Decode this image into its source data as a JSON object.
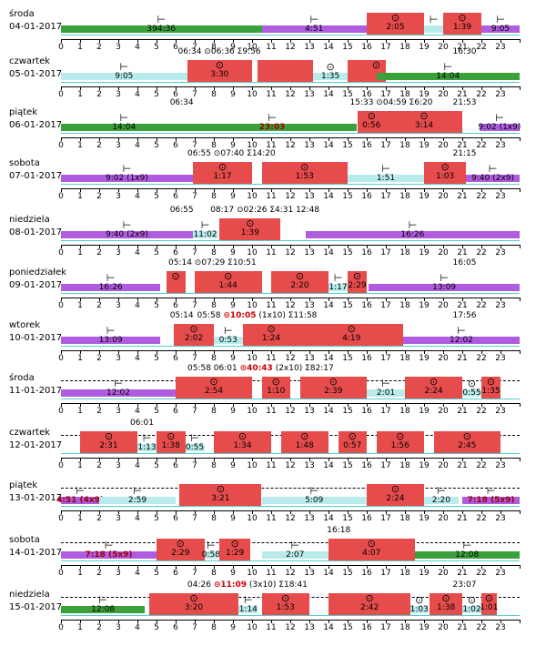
{
  "hours": [
    "0",
    "1",
    "2",
    "3",
    "4",
    "5",
    "6",
    "7",
    "8",
    "9",
    "10",
    "11",
    "12",
    "13",
    "14",
    "15",
    "16",
    "17",
    "18",
    "19",
    "20",
    "21",
    "22",
    "23"
  ],
  "icons": {
    "drive": "steering-wheel-icon",
    "rest": "bed-icon",
    "tools": "tools-icon"
  },
  "colors": {
    "drive": "#e74c4c",
    "rest": "#b8ecec",
    "green": "#3aa03a",
    "purple": "#b05ce0"
  },
  "days": [
    {
      "name": "środa",
      "date": "04-01-2017",
      "header": "",
      "header_bold": "",
      "labels": [
        "394:36",
        "4:51",
        "2:05",
        "1:39",
        "9:05"
      ]
    },
    {
      "name": "czwartek",
      "date": "05-01-2017",
      "header": "06:34 ⊙06:36 Σ9:56",
      "header_bold": "",
      "time_right": "16:30",
      "labels": [
        "9:05",
        "3:30",
        "1:35",
        "14:04"
      ]
    },
    {
      "name": "piątek",
      "date": "06-01-2017",
      "header": "15:33 ⊙04:59 Σ6:20",
      "header_bold": "",
      "time_left": "06:34",
      "time_right": "21:53",
      "labels": [
        "14:04",
        "23:03",
        "0:56",
        "3:14",
        "9:02 (1x9)"
      ]
    },
    {
      "name": "sobota",
      "date": "07-01-2017",
      "header": "06:55 ⊙07:40 Σ14:20",
      "header_bold": "",
      "time_right": "21:15",
      "labels": [
        "9:02 (1x9)",
        "1:17",
        "1:53",
        "1:51",
        "1:03",
        "9:40 (2x9)"
      ]
    },
    {
      "name": "niedziela",
      "date": "08-01-2017",
      "header": "08:17 ⊙02:26 Σ4:31 12:48",
      "header_bold": "",
      "time_left": "06:55",
      "labels": [
        "9:40 (2x9)",
        "11:02",
        "1:39",
        "16:26"
      ]
    },
    {
      "name": "poniedziałek",
      "date": "09-01-2017",
      "header": "05:14 ⊙07:29 Σ10:51",
      "header_bold": "",
      "time_right": "16:05",
      "labels": [
        "16:26",
        "1:44",
        "2:20",
        "1:17",
        "2:29",
        "13:09"
      ]
    },
    {
      "name": "wtorek",
      "date": "10-01-2017",
      "header": "05:58",
      "header_bold": "⊙10:05",
      "header_tail": "(1x10) Σ11:58",
      "time_left": "05:14",
      "time_right": "17:56",
      "labels": [
        "13:09",
        "2:02",
        "0:53",
        "1:24",
        "4:19",
        "12:02"
      ]
    },
    {
      "name": "środa",
      "date": "11-01-2017",
      "header": "05:58 06:01",
      "header_bold": "⊙40:43",
      "header_tail": "(2x10) Σ82:17",
      "labels": [
        "12:02",
        "2:54",
        "1:10",
        "2:39",
        "2:01",
        "2:24",
        "0:55",
        "1:35"
      ]
    },
    {
      "name": "czwartek",
      "date": "12-01-2017",
      "header": "06:01",
      "header_bold": "",
      "labels": [
        "2:31",
        "1:13",
        "1:38",
        "0:55",
        "1:34",
        "1:48",
        "0:57",
        "1:56",
        "2:45"
      ]
    },
    {
      "name": "piątek",
      "date": "13-01-2017",
      "header": "",
      "header_bold": "",
      "labels": [
        "4:51 (4x9)",
        "2:59",
        "3:21",
        "5:09",
        "2:24",
        "2:20",
        "7:18 (5x9)"
      ]
    },
    {
      "name": "sobota",
      "date": "14-01-2017",
      "header": "16:18",
      "header_bold": "",
      "labels": [
        "7:18 (5x9)",
        "2:29",
        "0:58",
        "1:29",
        "2:07",
        "4:07",
        "12:08"
      ]
    },
    {
      "name": "niedziela",
      "date": "15-01-2017",
      "header": "04:26",
      "header_bold": "⊙11:09",
      "header_tail": "(3x10) Σ18:41",
      "time_right": "23:07",
      "labels": [
        "12:08",
        "3:20",
        "1:14",
        "1:53",
        "2:42",
        "1:03",
        "1:38",
        "1:02",
        "1:01"
      ]
    }
  ]
}
